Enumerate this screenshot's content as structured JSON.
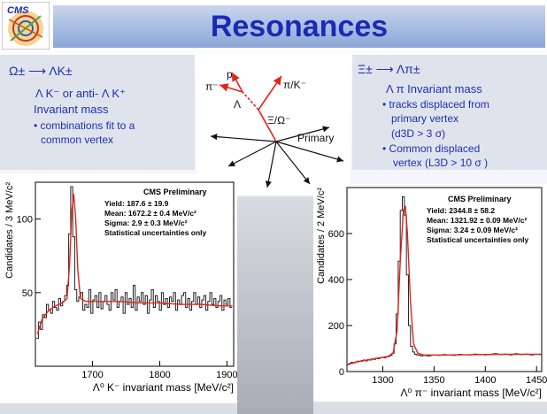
{
  "title": "Resonances",
  "left_box": {
    "reaction": "Ω± ⟶ ΛK±",
    "line1": "Λ K⁻ or anti- Λ K⁺",
    "line2": "Invariant mass",
    "bullet1": "• combinations fit to a",
    "bullet1b": "common vertex"
  },
  "right_box": {
    "reaction": "Ξ± ⟶ Λπ±",
    "line1": "Λ π Invariant mass",
    "bullet1": "• tracks displaced from",
    "bullet1b": "primary vertex",
    "bullet1c": "(d3D > 3 σ)",
    "bullet2": "• Common displaced",
    "bullet2b": "vertex (L3D > 10 σ )"
  },
  "diagram": {
    "labels": [
      "p",
      "π⁻",
      "π/K⁻",
      "Λ",
      "Ξ/Ω⁻",
      "Primary"
    ]
  },
  "colors": {
    "title": "#1b2ab5",
    "text": "#1f2fb4",
    "fit": "#e0241b",
    "hist": "#222222",
    "arrow_red": "#e0241b"
  },
  "chart_data": [
    {
      "type": "line",
      "title": "CMS Preliminary",
      "annotations": [
        "Yield: 187.6 ± 19.9",
        "Mean: 1672.2 ± 0.4 MeV/c²",
        "Sigma: 2.9 ± 0.3 MeV/c²",
        "Statistical uncertainties only"
      ],
      "xlabel": "Λ⁰ K⁻ invariant mass [MeV/c²]",
      "ylabel": "Candidates / 3 MeV/c²",
      "xlim": [
        1615,
        1910
      ],
      "ylim": [
        0,
        125
      ],
      "xticks": [
        1700,
        1800,
        1900
      ],
      "yticks": [
        50,
        100
      ],
      "series": [
        {
          "kind": "histogram",
          "x": [
            1618,
            1621,
            1624,
            1627,
            1630,
            1633,
            1636,
            1639,
            1642,
            1645,
            1648,
            1651,
            1654,
            1657,
            1660,
            1663,
            1666,
            1669,
            1672,
            1675,
            1678,
            1681,
            1684,
            1687,
            1690,
            1693,
            1696,
            1699,
            1702,
            1705,
            1708,
            1711,
            1714,
            1717,
            1720,
            1723,
            1726,
            1729,
            1732,
            1735,
            1738,
            1741,
            1744,
            1747,
            1750,
            1753,
            1756,
            1759,
            1762,
            1765,
            1768,
            1771,
            1774,
            1777,
            1780,
            1783,
            1786,
            1789,
            1792,
            1795,
            1798,
            1801,
            1804,
            1807,
            1810,
            1813,
            1816,
            1819,
            1822,
            1825,
            1828,
            1831,
            1834,
            1837,
            1840,
            1843,
            1846,
            1849,
            1852,
            1855,
            1858,
            1861,
            1864,
            1867,
            1870,
            1873,
            1876,
            1879,
            1882,
            1885,
            1888,
            1891,
            1894,
            1897,
            1900,
            1903,
            1906
          ],
          "values": [
            19,
            30,
            25,
            35,
            33,
            42,
            38,
            36,
            44,
            40,
            38,
            46,
            41,
            44,
            48,
            55,
            90,
            122,
            88,
            52,
            44,
            47,
            50,
            38,
            42,
            40,
            52,
            36,
            45,
            48,
            40,
            50,
            39,
            44,
            48,
            42,
            38,
            50,
            45,
            52,
            40,
            44,
            47,
            36,
            50,
            42,
            46,
            40,
            55,
            38,
            47,
            44,
            50,
            42,
            48,
            36,
            45,
            52,
            40,
            48,
            44,
            38,
            50,
            42,
            46,
            40,
            47,
            44,
            50,
            38,
            45,
            42,
            48,
            50,
            40,
            46,
            38,
            44,
            50,
            42,
            47,
            40,
            45,
            48,
            38,
            44,
            50,
            42,
            46,
            40,
            44,
            48,
            38,
            45,
            42,
            46,
            40
          ]
        },
        {
          "kind": "fit",
          "x": [
            1618,
            1625,
            1635,
            1645,
            1655,
            1662,
            1666,
            1669,
            1672,
            1675,
            1678,
            1682,
            1690,
            1710,
            1740,
            1770,
            1800,
            1830,
            1860,
            1890,
            1908
          ],
          "values": [
            22,
            32,
            38,
            41,
            43,
            46,
            70,
            105,
            117,
            100,
            66,
            46,
            44,
            44,
            44,
            43,
            43,
            42,
            42,
            41,
            41
          ]
        }
      ]
    },
    {
      "type": "line",
      "title": "CMS Preliminary",
      "annotations": [
        "Yield: 2344.8 ± 58.2",
        "Mean: 1321.92 ± 0.09 MeV/c²",
        "Sigma: 3.24 ± 0.09 MeV/c²",
        "Statistical uncertainties only"
      ],
      "xlabel": "Λ⁰ π⁻ invariant mass [MeV/c²]",
      "ylabel": "Candidates / 2 MeV/c²",
      "xlim": [
        1265,
        1455
      ],
      "ylim": [
        0,
        800
      ],
      "xticks": [
        1300,
        1350,
        1400,
        1450
      ],
      "yticks": [
        0,
        200,
        400,
        600
      ],
      "series": [
        {
          "kind": "histogram",
          "x": [
            1266,
            1268,
            1270,
            1272,
            1274,
            1276,
            1278,
            1280,
            1282,
            1284,
            1286,
            1288,
            1290,
            1292,
            1294,
            1296,
            1298,
            1300,
            1302,
            1304,
            1306,
            1308,
            1310,
            1312,
            1314,
            1316,
            1318,
            1320,
            1322,
            1324,
            1326,
            1328,
            1330,
            1332,
            1334,
            1336,
            1338,
            1340,
            1345,
            1350,
            1355,
            1360,
            1365,
            1370,
            1375,
            1380,
            1385,
            1390,
            1395,
            1400,
            1405,
            1410,
            1415,
            1420,
            1425,
            1430,
            1435,
            1440,
            1445,
            1450,
            1454
          ],
          "values": [
            30,
            35,
            40,
            38,
            42,
            45,
            44,
            48,
            50,
            46,
            52,
            50,
            55,
            53,
            58,
            56,
            60,
            62,
            60,
            64,
            66,
            70,
            80,
            120,
            250,
            480,
            700,
            760,
            680,
            420,
            200,
            110,
            85,
            75,
            72,
            70,
            68,
            70,
            68,
            72,
            70,
            74,
            72,
            70,
            75,
            73,
            72,
            76,
            74,
            72,
            75,
            78,
            74,
            76,
            72,
            78,
            74,
            76,
            72,
            75,
            74
          ]
        },
        {
          "kind": "fit",
          "x": [
            1266,
            1275,
            1285,
            1295,
            1305,
            1310,
            1314,
            1317,
            1320,
            1322,
            1324,
            1327,
            1330,
            1334,
            1340,
            1360,
            1380,
            1400,
            1420,
            1440,
            1454
          ],
          "values": [
            30,
            42,
            50,
            58,
            66,
            80,
            180,
            480,
            700,
            720,
            600,
            300,
            120,
            80,
            72,
            72,
            73,
            74,
            75,
            75,
            75
          ]
        }
      ]
    }
  ]
}
